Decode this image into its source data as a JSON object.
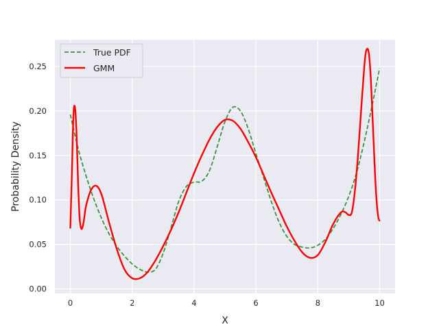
{
  "chart_data": {
    "type": "line",
    "title": "",
    "xlabel": "X",
    "ylabel": "Probability Density",
    "xlim": [
      -0.5,
      10.5
    ],
    "ylim": [
      -0.005,
      0.28
    ],
    "xticks": [
      0,
      2,
      4,
      6,
      8,
      10
    ],
    "xtick_labels": [
      "0",
      "2",
      "4",
      "6",
      "8",
      "10"
    ],
    "yticks": [
      0.0,
      0.05,
      0.1,
      0.15,
      0.2,
      0.25
    ],
    "ytick_labels": [
      "0.00",
      "0.05",
      "0.10",
      "0.15",
      "0.20",
      "0.25"
    ],
    "grid": true,
    "legend_position": "top-left",
    "series": [
      {
        "name": "True PDF",
        "color": "#3a923a",
        "style": "dashed",
        "x": [
          0,
          0.25,
          0.5,
          0.75,
          1.0,
          1.25,
          1.5,
          1.75,
          2.0,
          2.25,
          2.5,
          2.75,
          3.0,
          3.25,
          3.5,
          3.75,
          4.0,
          4.25,
          4.5,
          4.75,
          5.0,
          5.25,
          5.5,
          5.75,
          6.0,
          6.25,
          6.5,
          6.75,
          7.0,
          7.25,
          7.5,
          7.75,
          8.0,
          8.25,
          8.5,
          8.75,
          9.0,
          9.25,
          9.5,
          9.75,
          10.0
        ],
        "y": [
          0.196,
          0.158,
          0.128,
          0.102,
          0.08,
          0.062,
          0.048,
          0.037,
          0.028,
          0.022,
          0.019,
          0.022,
          0.04,
          0.068,
          0.098,
          0.115,
          0.12,
          0.121,
          0.133,
          0.16,
          0.188,
          0.204,
          0.2,
          0.18,
          0.152,
          0.125,
          0.098,
          0.075,
          0.059,
          0.05,
          0.047,
          0.046,
          0.049,
          0.056,
          0.068,
          0.084,
          0.104,
          0.13,
          0.165,
          0.205,
          0.248
        ]
      },
      {
        "name": "GMM",
        "color": "#ff0000",
        "style": "solid",
        "x": [
          0,
          0.05,
          0.1,
          0.15,
          0.2,
          0.25,
          0.3,
          0.35,
          0.4,
          0.45,
          0.5,
          0.6,
          0.7,
          0.8,
          0.9,
          1.0,
          1.1,
          1.25,
          1.5,
          1.75,
          2.0,
          2.25,
          2.5,
          2.75,
          3.0,
          3.25,
          3.5,
          3.75,
          4.0,
          4.25,
          4.5,
          4.75,
          5.0,
          5.25,
          5.5,
          5.75,
          6.0,
          6.25,
          6.5,
          6.75,
          7.0,
          7.25,
          7.5,
          7.75,
          8.0,
          8.25,
          8.5,
          8.75,
          8.9,
          9.0,
          9.1,
          9.2,
          9.3,
          9.4,
          9.5,
          9.55,
          9.6,
          9.65,
          9.7,
          9.75,
          9.8,
          9.85,
          9.9,
          9.95,
          10.0
        ],
        "y": [
          0.068,
          0.13,
          0.195,
          0.204,
          0.175,
          0.12,
          0.08,
          0.068,
          0.07,
          0.08,
          0.092,
          0.105,
          0.113,
          0.116,
          0.114,
          0.107,
          0.095,
          0.075,
          0.045,
          0.022,
          0.012,
          0.012,
          0.019,
          0.032,
          0.048,
          0.066,
          0.086,
          0.108,
          0.13,
          0.15,
          0.168,
          0.182,
          0.19,
          0.189,
          0.18,
          0.165,
          0.148,
          0.128,
          0.108,
          0.089,
          0.07,
          0.054,
          0.041,
          0.035,
          0.038,
          0.053,
          0.073,
          0.086,
          0.086,
          0.083,
          0.086,
          0.11,
          0.15,
          0.2,
          0.248,
          0.265,
          0.27,
          0.265,
          0.245,
          0.21,
          0.17,
          0.13,
          0.1,
          0.082,
          0.076
        ]
      }
    ]
  }
}
